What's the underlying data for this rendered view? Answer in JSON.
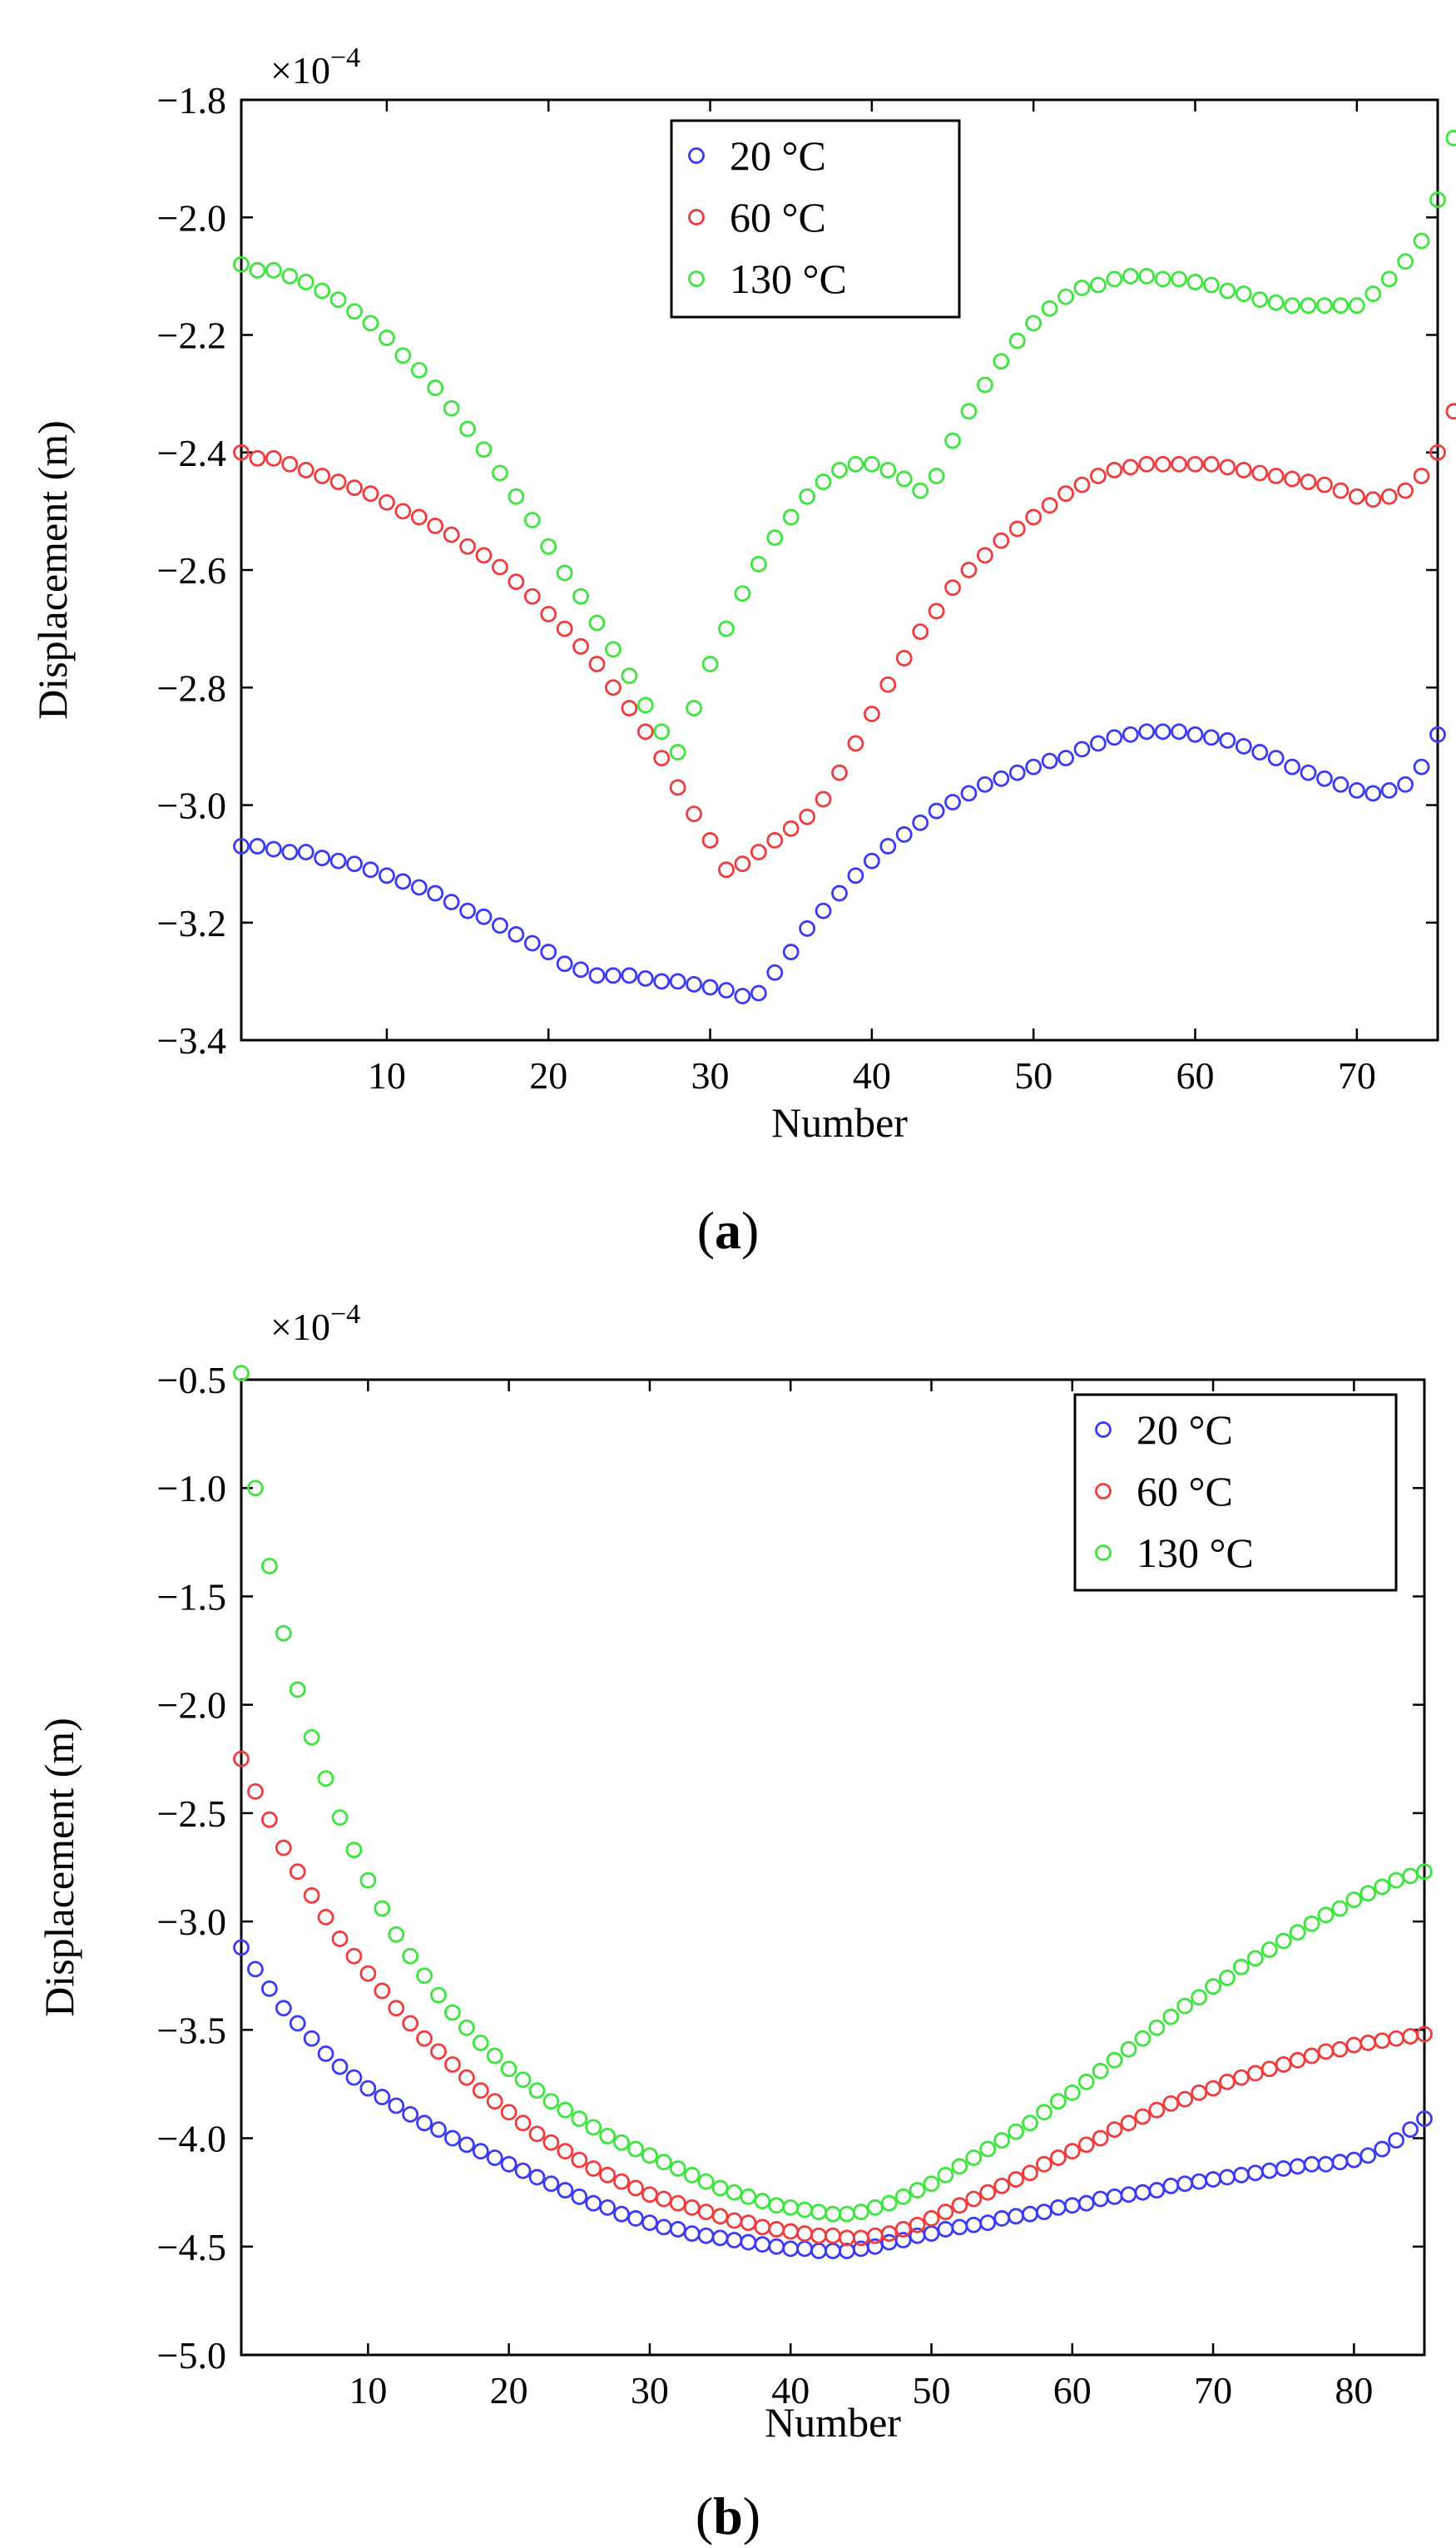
{
  "chart_data": [
    {
      "type": "scatter",
      "panel_label": "a",
      "exponent_label": "×10",
      "exponent_power": "−4",
      "xlabel": "Number",
      "ylabel": "Displacement (m)",
      "xlim": [
        1,
        75
      ],
      "ylim": [
        -3.4,
        -1.8
      ],
      "xticks": [
        10,
        20,
        30,
        40,
        50,
        60,
        70
      ],
      "yticks": [
        -3.4,
        -3.2,
        -3.0,
        -2.8,
        -2.6,
        -2.4,
        -2.2,
        -2.0,
        -1.8
      ],
      "ytick_labels": [
        "−3.4",
        "−3.2",
        "−3.0",
        "−2.8",
        "−2.6",
        "−2.4",
        "−2.2",
        "−2.0",
        "−1.8"
      ],
      "legend_location": "top-center",
      "x_start": 1,
      "series": [
        {
          "name": "20 °C",
          "color": "#3b3bf5",
          "values": [
            -3.07,
            -3.07,
            -3.075,
            -3.08,
            -3.08,
            -3.09,
            -3.095,
            -3.1,
            -3.11,
            -3.12,
            -3.13,
            -3.14,
            -3.15,
            -3.165,
            -3.18,
            -3.19,
            -3.205,
            -3.22,
            -3.235,
            -3.25,
            -3.27,
            -3.28,
            -3.29,
            -3.29,
            -3.29,
            -3.295,
            -3.3,
            -3.3,
            -3.305,
            -3.31,
            -3.315,
            -3.325,
            -3.32,
            -3.285,
            -3.25,
            -3.21,
            -3.18,
            -3.15,
            -3.12,
            -3.095,
            -3.07,
            -3.05,
            -3.03,
            -3.01,
            -2.995,
            -2.98,
            -2.965,
            -2.955,
            -2.945,
            -2.935,
            -2.925,
            -2.92,
            -2.905,
            -2.895,
            -2.885,
            -2.88,
            -2.875,
            -2.875,
            -2.875,
            -2.88,
            -2.885,
            -2.89,
            -2.9,
            -2.91,
            -2.92,
            -2.935,
            -2.945,
            -2.955,
            -2.965,
            -2.975,
            -2.98,
            -2.975,
            -2.965,
            -2.935,
            -2.88
          ]
        },
        {
          "name": "60 °C",
          "color": "#f03c3c",
          "values": [
            -2.4,
            -2.41,
            -2.41,
            -2.42,
            -2.43,
            -2.44,
            -2.45,
            -2.46,
            -2.47,
            -2.485,
            -2.5,
            -2.51,
            -2.525,
            -2.54,
            -2.56,
            -2.575,
            -2.595,
            -2.62,
            -2.645,
            -2.675,
            -2.7,
            -2.73,
            -2.76,
            -2.8,
            -2.835,
            -2.875,
            -2.92,
            -2.97,
            -3.015,
            -3.06,
            -3.11,
            -3.1,
            -3.08,
            -3.06,
            -3.04,
            -3.02,
            -2.99,
            -2.945,
            -2.895,
            -2.845,
            -2.795,
            -2.75,
            -2.705,
            -2.67,
            -2.63,
            -2.6,
            -2.575,
            -2.55,
            -2.53,
            -2.51,
            -2.49,
            -2.47,
            -2.455,
            -2.44,
            -2.43,
            -2.425,
            -2.42,
            -2.42,
            -2.42,
            -2.42,
            -2.42,
            -2.425,
            -2.43,
            -2.435,
            -2.44,
            -2.445,
            -2.45,
            -2.455,
            -2.465,
            -2.475,
            -2.48,
            -2.475,
            -2.465,
            -2.44,
            -2.4,
            -2.33
          ]
        },
        {
          "name": "130 °C",
          "color": "#3ce63c",
          "values": [
            -2.08,
            -2.09,
            -2.09,
            -2.1,
            -2.11,
            -2.125,
            -2.14,
            -2.16,
            -2.18,
            -2.205,
            -2.235,
            -2.26,
            -2.29,
            -2.325,
            -2.36,
            -2.395,
            -2.435,
            -2.475,
            -2.515,
            -2.56,
            -2.605,
            -2.645,
            -2.69,
            -2.735,
            -2.78,
            -2.83,
            -2.875,
            -2.91,
            -2.835,
            -2.76,
            -2.7,
            -2.64,
            -2.59,
            -2.545,
            -2.51,
            -2.475,
            -2.45,
            -2.43,
            -2.42,
            -2.42,
            -2.43,
            -2.445,
            -2.465,
            -2.44,
            -2.38,
            -2.33,
            -2.285,
            -2.245,
            -2.21,
            -2.18,
            -2.155,
            -2.135,
            -2.12,
            -2.115,
            -2.105,
            -2.1,
            -2.1,
            -2.105,
            -2.105,
            -2.11,
            -2.115,
            -2.125,
            -2.13,
            -2.14,
            -2.145,
            -2.15,
            -2.15,
            -2.15,
            -2.15,
            -2.15,
            -2.13,
            -2.105,
            -2.075,
            -2.04,
            -1.97,
            -1.865
          ]
        }
      ]
    },
    {
      "type": "scatter",
      "panel_label": "b",
      "exponent_label": "×10",
      "exponent_power": "−4",
      "xlabel": "Number",
      "ylabel": "Displacement (m)",
      "xlim": [
        1,
        85
      ],
      "ylim": [
        -5.0,
        -0.5
      ],
      "xticks": [
        10,
        20,
        30,
        40,
        50,
        60,
        70,
        80
      ],
      "yticks": [
        -5.0,
        -4.5,
        -4.0,
        -3.5,
        -3.0,
        -2.5,
        -2.0,
        -1.5,
        -1.0,
        -0.5
      ],
      "ytick_labels": [
        "−5.0",
        "−4.5",
        "−4.0",
        "−3.5",
        "−3.0",
        "−2.5",
        "−2.0",
        "−1.5",
        "−1.0",
        "−0.5"
      ],
      "legend_location": "top-right",
      "x_start": 1,
      "series": [
        {
          "name": "20 °C",
          "color": "#3b3bf5",
          "values": [
            -3.12,
            -3.22,
            -3.31,
            -3.4,
            -3.47,
            -3.54,
            -3.61,
            -3.67,
            -3.72,
            -3.77,
            -3.81,
            -3.85,
            -3.89,
            -3.93,
            -3.96,
            -4.0,
            -4.03,
            -4.06,
            -4.09,
            -4.12,
            -4.15,
            -4.18,
            -4.21,
            -4.24,
            -4.27,
            -4.3,
            -4.32,
            -4.35,
            -4.37,
            -4.39,
            -4.41,
            -4.42,
            -4.44,
            -4.45,
            -4.46,
            -4.47,
            -4.48,
            -4.49,
            -4.5,
            -4.51,
            -4.51,
            -4.52,
            -4.52,
            -4.52,
            -4.51,
            -4.5,
            -4.48,
            -4.47,
            -4.45,
            -4.44,
            -4.42,
            -4.41,
            -4.4,
            -4.39,
            -4.37,
            -4.36,
            -4.35,
            -4.34,
            -4.32,
            -4.31,
            -4.3,
            -4.28,
            -4.27,
            -4.26,
            -4.25,
            -4.24,
            -4.22,
            -4.21,
            -4.2,
            -4.19,
            -4.18,
            -4.17,
            -4.16,
            -4.15,
            -4.14,
            -4.13,
            -4.12,
            -4.12,
            -4.11,
            -4.1,
            -4.08,
            -4.05,
            -4.01,
            -3.96,
            -3.91
          ]
        },
        {
          "name": "60 °C",
          "color": "#f03c3c",
          "values": [
            -2.25,
            -2.4,
            -2.53,
            -2.66,
            -2.77,
            -2.88,
            -2.98,
            -3.08,
            -3.16,
            -3.24,
            -3.32,
            -3.4,
            -3.47,
            -3.54,
            -3.6,
            -3.66,
            -3.72,
            -3.78,
            -3.83,
            -3.88,
            -3.93,
            -3.98,
            -4.02,
            -4.06,
            -4.1,
            -4.14,
            -4.17,
            -4.2,
            -4.23,
            -4.26,
            -4.28,
            -4.3,
            -4.32,
            -4.34,
            -4.36,
            -4.38,
            -4.39,
            -4.41,
            -4.42,
            -4.43,
            -4.44,
            -4.45,
            -4.45,
            -4.46,
            -4.46,
            -4.45,
            -4.44,
            -4.42,
            -4.4,
            -4.37,
            -4.34,
            -4.31,
            -4.28,
            -4.25,
            -4.22,
            -4.19,
            -4.16,
            -4.12,
            -4.09,
            -4.06,
            -4.03,
            -4.0,
            -3.96,
            -3.93,
            -3.9,
            -3.87,
            -3.84,
            -3.82,
            -3.79,
            -3.77,
            -3.74,
            -3.72,
            -3.7,
            -3.68,
            -3.66,
            -3.64,
            -3.62,
            -3.6,
            -3.59,
            -3.57,
            -3.56,
            -3.55,
            -3.54,
            -3.53,
            -3.52
          ]
        },
        {
          "name": "130 °C",
          "color": "#3ce63c",
          "values": [
            -0.47,
            -1.0,
            -1.36,
            -1.67,
            -1.93,
            -2.15,
            -2.34,
            -2.52,
            -2.67,
            -2.81,
            -2.94,
            -3.06,
            -3.16,
            -3.25,
            -3.34,
            -3.42,
            -3.49,
            -3.56,
            -3.62,
            -3.68,
            -3.73,
            -3.78,
            -3.83,
            -3.87,
            -3.91,
            -3.95,
            -3.99,
            -4.02,
            -4.05,
            -4.08,
            -4.11,
            -4.14,
            -4.17,
            -4.2,
            -4.23,
            -4.25,
            -4.27,
            -4.29,
            -4.31,
            -4.32,
            -4.33,
            -4.34,
            -4.35,
            -4.35,
            -4.34,
            -4.32,
            -4.3,
            -4.27,
            -4.24,
            -4.21,
            -4.17,
            -4.13,
            -4.09,
            -4.05,
            -4.01,
            -3.97,
            -3.93,
            -3.88,
            -3.83,
            -3.79,
            -3.74,
            -3.69,
            -3.64,
            -3.59,
            -3.54,
            -3.49,
            -3.44,
            -3.39,
            -3.35,
            -3.3,
            -3.26,
            -3.21,
            -3.17,
            -3.13,
            -3.09,
            -3.05,
            -3.01,
            -2.97,
            -2.94,
            -2.9,
            -2.87,
            -2.84,
            -2.81,
            -2.79,
            -2.77
          ]
        }
      ]
    }
  ]
}
